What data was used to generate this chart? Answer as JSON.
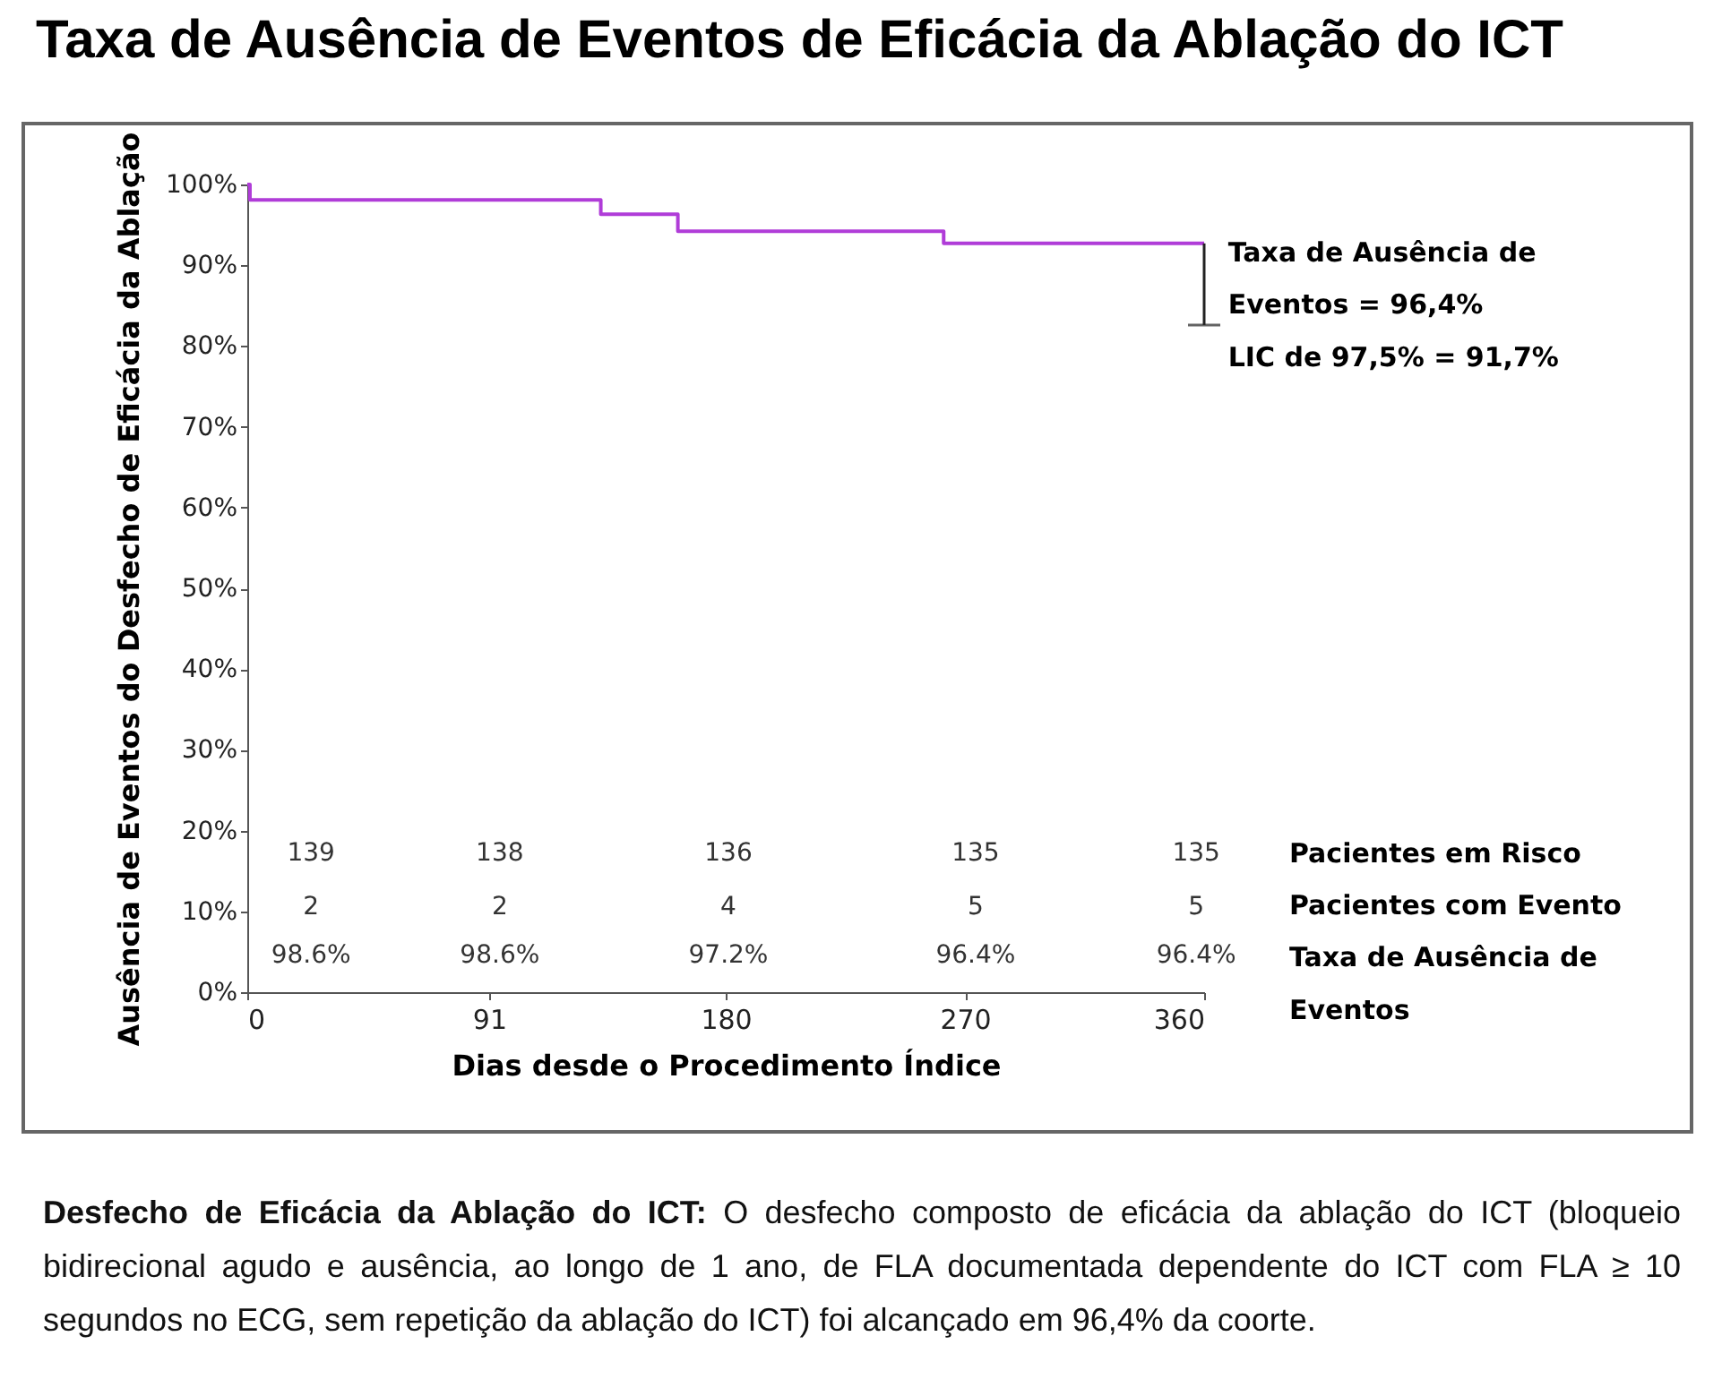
{
  "chart_data": {
    "type": "step",
    "title": "Taxa de Ausência de Eventos de Eficácia da Ablação do ICT",
    "xlabel": "Dias desde o Procedimento Índice",
    "ylabel": "Ausência de Eventos do Desfecho de Eficácia da Ablação",
    "x": [
      0,
      1,
      133,
      162,
      262,
      360
    ],
    "series": [
      {
        "color": "#b03cd8",
        "values": [
          100,
          98.1,
          96.3,
          94.2,
          92.7,
          92.7
        ],
        "errors": [
          null,
          null,
          null,
          null,
          null,
          [
            82.6,
            92.7
          ]
        ]
      }
    ],
    "xlim": [
      0,
      360
    ],
    "xticks": [
      0,
      91,
      180,
      270,
      360
    ],
    "ylim": [
      0,
      100
    ],
    "yticks": [
      {
        "value": 0,
        "label": "0%"
      },
      {
        "value": 10,
        "label": "10%"
      },
      {
        "value": 20,
        "label": "20%"
      },
      {
        "value": 30,
        "label": "30%"
      },
      {
        "value": 40,
        "label": "40%"
      },
      {
        "value": 50,
        "label": "50%"
      },
      {
        "value": 60,
        "label": "60%"
      },
      {
        "value": 70,
        "label": "70%"
      },
      {
        "value": 80,
        "label": "80%"
      },
      {
        "value": 90,
        "label": "90%"
      },
      {
        "value": 100,
        "label": "100%"
      }
    ],
    "grid": false,
    "marker": "none",
    "annotations": [
      "Taxa de Ausência de",
      "Eventos = 96,4%",
      "LIC de 97,5% = 91,7%",
      "Pacientes em Risco",
      "Pacientes com Evento",
      "Taxa de Ausência de",
      "Eventos",
      "139",
      "138",
      "136",
      "135",
      "135",
      "2",
      "2",
      "4",
      "5",
      "5",
      "98.6%",
      "98.6%",
      "97.2%",
      "96.4%",
      "96.4%",
      "Desfecho de Eficácia da Ablação do ICT:",
      "O desfecho composto de eficácia da ablação do ICT (bloqueio bidirecional agudo e ausência, ao longo de 1 ano, de FLA documentada dependente do ICT com FLA ≥ 10 segundos no ECG, sem repetição da ablação do ICT) foi alcançado em 96,4% da coorte."
    ]
  }
}
